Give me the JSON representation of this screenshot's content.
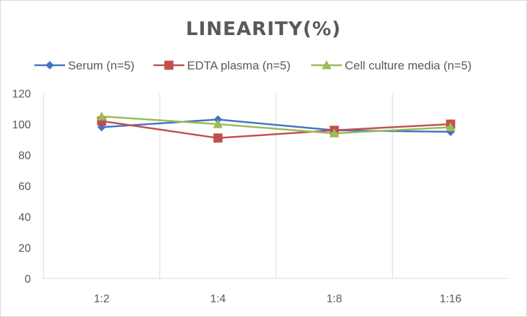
{
  "chart_data": {
    "type": "line",
    "title": "LINEARITY(%)",
    "categories": [
      "1:2",
      "1:4",
      "1:8",
      "1:16"
    ],
    "series": [
      {
        "name": "Serum (n=5)",
        "values": [
          98,
          103,
          96,
          95
        ],
        "color": "#4472c4",
        "marker": "diamond"
      },
      {
        "name": "EDTA plasma (n=5)",
        "values": [
          102,
          91,
          96,
          100
        ],
        "color": "#c0504d",
        "marker": "square"
      },
      {
        "name": "Cell culture media (n=5)",
        "values": [
          105,
          100,
          94,
          98
        ],
        "color": "#9bbb59",
        "marker": "triangle"
      }
    ],
    "y_ticks": [
      "0",
      "20",
      "40",
      "60",
      "80",
      "100",
      "120"
    ],
    "ylim": [
      0,
      120
    ],
    "grid": "vertical-category-lines",
    "legend_position": "top"
  }
}
